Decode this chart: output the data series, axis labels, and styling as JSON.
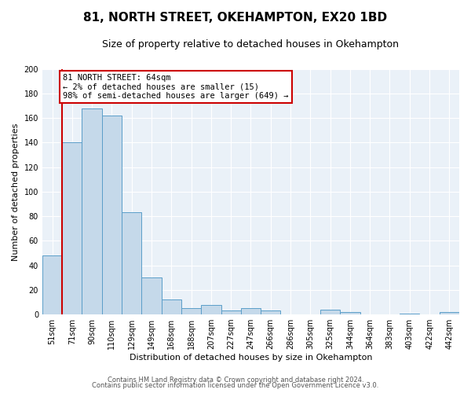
{
  "title": "81, NORTH STREET, OKEHAMPTON, EX20 1BD",
  "subtitle": "Size of property relative to detached houses in Okehampton",
  "xlabel": "Distribution of detached houses by size in Okehampton",
  "ylabel": "Number of detached properties",
  "categories": [
    "51sqm",
    "71sqm",
    "90sqm",
    "110sqm",
    "129sqm",
    "149sqm",
    "168sqm",
    "188sqm",
    "207sqm",
    "227sqm",
    "247sqm",
    "266sqm",
    "286sqm",
    "305sqm",
    "325sqm",
    "344sqm",
    "364sqm",
    "383sqm",
    "403sqm",
    "422sqm",
    "442sqm"
  ],
  "values": [
    48,
    140,
    168,
    162,
    83,
    30,
    12,
    5,
    8,
    3,
    5,
    3,
    0,
    0,
    4,
    2,
    0,
    0,
    1,
    0,
    2
  ],
  "bar_color": "#c5d9ea",
  "bar_edge_color": "#5b9ec9",
  "ylim": [
    0,
    200
  ],
  "yticks": [
    0,
    20,
    40,
    60,
    80,
    100,
    120,
    140,
    160,
    180,
    200
  ],
  "annotation_title": "81 NORTH STREET: 64sqm",
  "annotation_line1": "← 2% of detached houses are smaller (15)",
  "annotation_line2": "98% of semi-detached houses are larger (649) →",
  "annotation_box_color": "#ffffff",
  "annotation_box_edge_color": "#cc0000",
  "vertical_line_color": "#cc0000",
  "footer1": "Contains HM Land Registry data © Crown copyright and database right 2024.",
  "footer2": "Contains public sector information licensed under the Open Government Licence v3.0.",
  "background_color": "#ffffff",
  "plot_bg_color": "#eaf1f8",
  "grid_color": "#ffffff",
  "title_fontsize": 11,
  "subtitle_fontsize": 9,
  "axis_label_fontsize": 8,
  "tick_fontsize": 7,
  "footer_fontsize": 6,
  "annotation_fontsize": 7.5
}
